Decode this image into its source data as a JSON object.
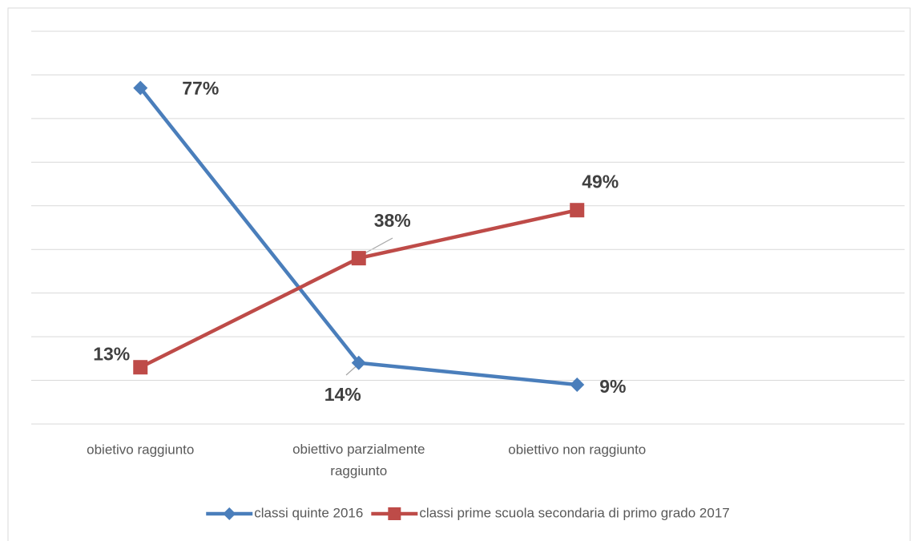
{
  "chart_data": {
    "type": "line",
    "categories": [
      "obietivo raggiunto",
      "obiettivo parzialmente raggiunto",
      "obiettivo non raggiunto",
      null
    ],
    "series": [
      {
        "name": "classi quinte 2016",
        "color": "#4a7ebb",
        "marker": "diamond",
        "values": [
          77,
          14,
          9,
          null
        ],
        "value_labels": [
          "77%",
          "14%",
          "9%",
          null
        ]
      },
      {
        "name": "classi prime scuola secondaria di primo grado 2017",
        "color": "#be4b48",
        "marker": "square",
        "values": [
          13,
          38,
          49,
          null
        ],
        "value_labels": [
          "13%",
          "38%",
          "49%",
          null
        ]
      }
    ],
    "ylim": [
      0,
      90
    ],
    "yticks": [
      0,
      10,
      20,
      30,
      40,
      50,
      60,
      70,
      80,
      90
    ],
    "grid": true,
    "legend": "bottom"
  }
}
